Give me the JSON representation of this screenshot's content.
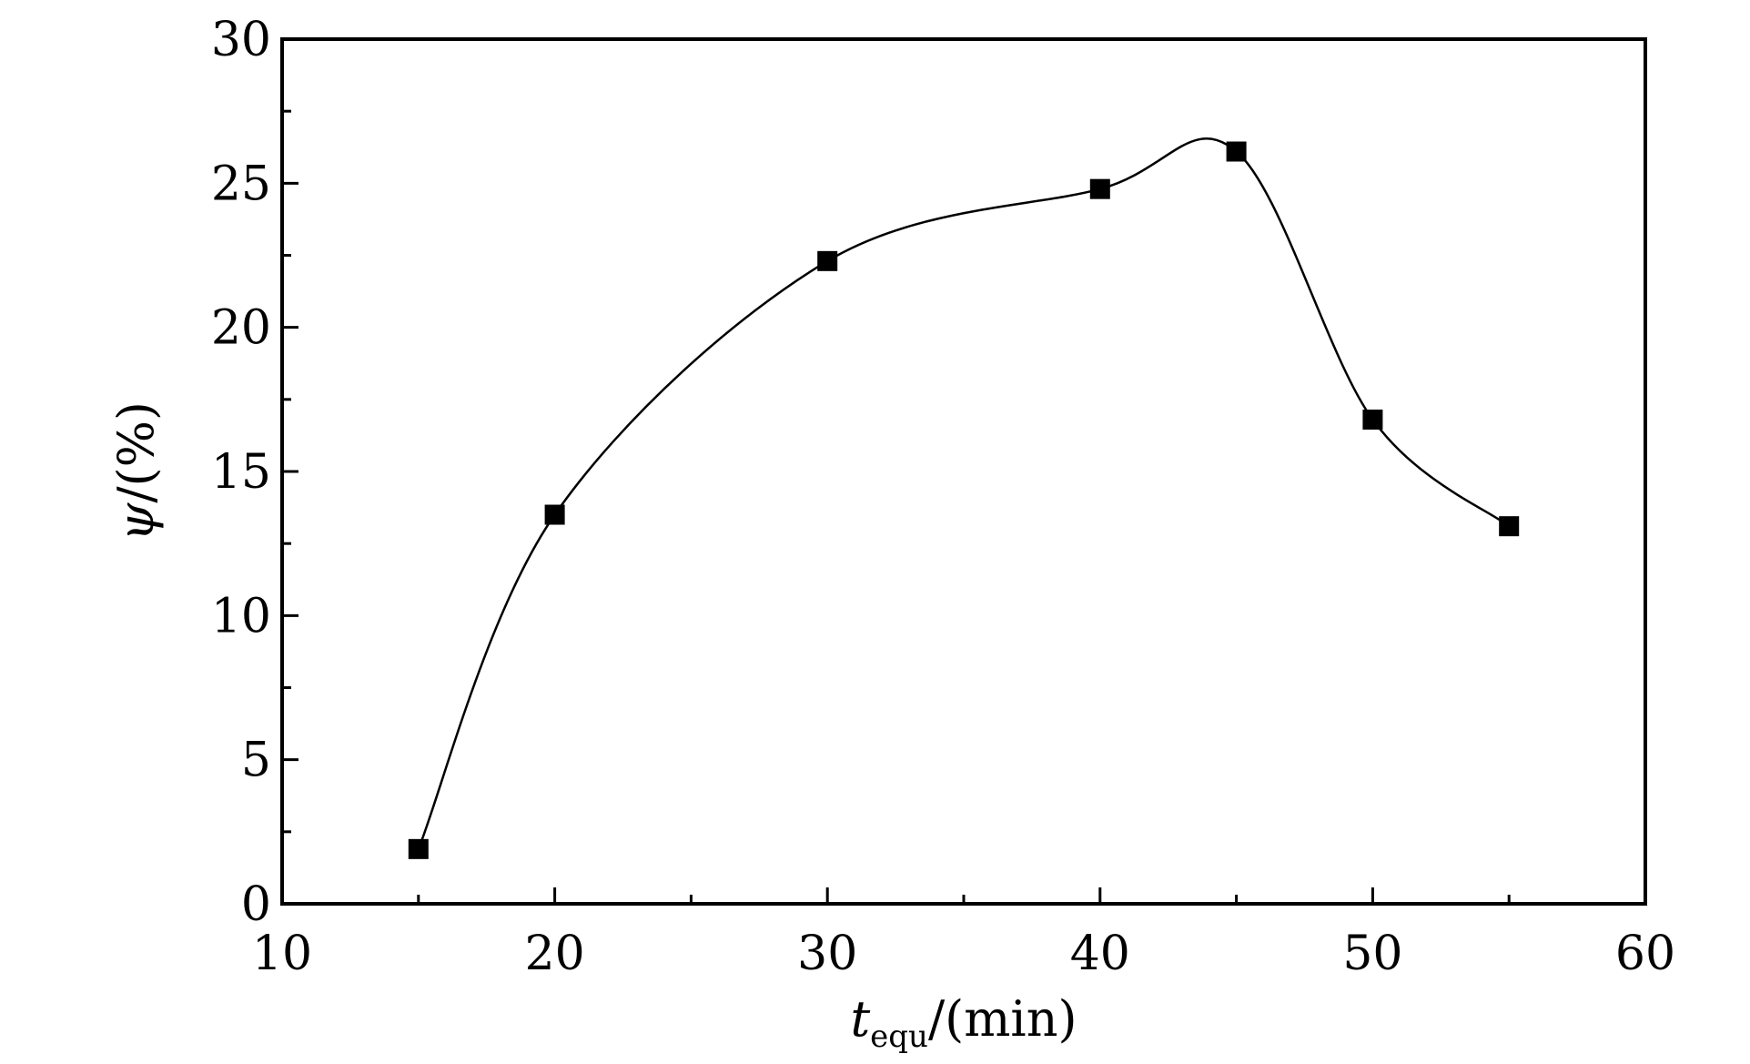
{
  "chart_data": {
    "type": "line",
    "markers": "filled-square",
    "curve": "smooth",
    "xlabel": {
      "var": "t",
      "sub": "equ",
      "unit": "/(min)"
    },
    "ylabel": {
      "var": "ψ",
      "unit": "/(%)"
    },
    "xlim": [
      10,
      60
    ],
    "ylim": [
      0,
      30
    ],
    "x_ticks": [
      "10",
      "20",
      "30",
      "40",
      "50",
      "60"
    ],
    "y_ticks": [
      "0",
      "5",
      "10",
      "15",
      "20",
      "25",
      "30"
    ],
    "grid": false,
    "series": [
      {
        "x": [
          15,
          20,
          30,
          40,
          45,
          50,
          55
        ],
        "y": [
          1.9,
          13.5,
          22.3,
          24.8,
          26.1,
          16.8,
          13.1
        ],
        "color": "#000000"
      }
    ]
  }
}
